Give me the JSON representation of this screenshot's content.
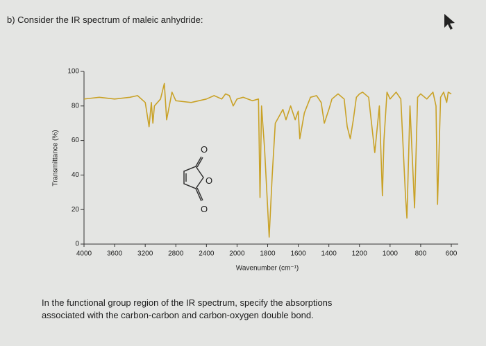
{
  "header": {
    "question": "b) Consider the IR spectrum of maleic anhydride:"
  },
  "chart_data": {
    "type": "line",
    "x_label": "Wavenumber (cm⁻¹)",
    "y_label": "Transmittance (%)",
    "xlim": [
      4000,
      600
    ],
    "xticks": [
      4000,
      3600,
      3200,
      2800,
      2400,
      2000,
      1800,
      1600,
      1400,
      1200,
      1000,
      800,
      600
    ],
    "ylim": [
      0,
      100
    ],
    "yticks": [
      0,
      20,
      40,
      60,
      80,
      100
    ],
    "color": "#c9a227",
    "x": [
      4000,
      3800,
      3600,
      3400,
      3300,
      3200,
      3150,
      3120,
      3100,
      3080,
      3000,
      2950,
      2920,
      2850,
      2800,
      2600,
      2400,
      2300,
      2200,
      2150,
      2100,
      2050,
      2000,
      1960,
      1900,
      1860,
      1850,
      1840,
      1820,
      1790,
      1770,
      1750,
      1700,
      1680,
      1650,
      1620,
      1600,
      1590,
      1560,
      1520,
      1480,
      1450,
      1430,
      1400,
      1380,
      1340,
      1300,
      1280,
      1260,
      1240,
      1220,
      1200,
      1180,
      1140,
      1100,
      1070,
      1050,
      1040,
      1020,
      1000,
      960,
      930,
      900,
      890,
      870,
      840,
      820,
      800,
      760,
      720,
      700,
      690,
      670,
      650,
      630,
      620,
      600
    ],
    "values": [
      84,
      85,
      84,
      85,
      86,
      82,
      68,
      82,
      70,
      80,
      84,
      93,
      72,
      88,
      83,
      82,
      84,
      86,
      84,
      87,
      86,
      80,
      84,
      85,
      83,
      84,
      27,
      80,
      55,
      4,
      40,
      70,
      78,
      72,
      80,
      72,
      77,
      61,
      76,
      85,
      86,
      82,
      70,
      78,
      84,
      87,
      84,
      68,
      61,
      72,
      85,
      87,
      88,
      85,
      53,
      80,
      28,
      60,
      88,
      84,
      88,
      84,
      29,
      15,
      80,
      21,
      85,
      87,
      84,
      88,
      80,
      23,
      85,
      88,
      82,
      88,
      87
    ]
  },
  "structure": {
    "labels": [
      "O",
      "O",
      "O"
    ]
  },
  "footer": {
    "lines": [
      "In the functional group region of the IR spectrum, specify the absorptions",
      "associated with the carbon-carbon and carbon-oxygen double bond."
    ]
  }
}
